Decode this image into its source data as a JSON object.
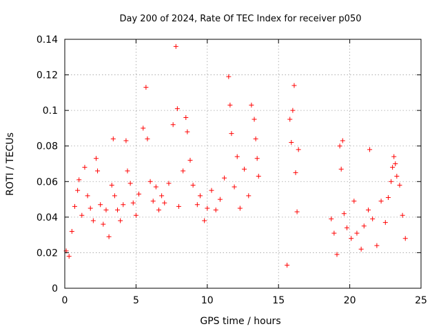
{
  "chart_data": {
    "type": "scatter",
    "title": "Day 200 of 2024, Rate Of TEC Index for receiver p050",
    "xlabel": "GPS time / hours",
    "ylabel": "ROTI / TECUs",
    "xlim": [
      0,
      25
    ],
    "ylim": [
      0,
      0.14
    ],
    "xticks": [
      "0",
      "5",
      "10",
      "15",
      "20",
      "25"
    ],
    "yticks": [
      "0",
      "0.02",
      "0.04",
      "0.06",
      "0.08",
      "0.1",
      "0.12",
      "0.14"
    ],
    "grid": true,
    "marker": "+",
    "color": "#ff0000",
    "series": [
      {
        "x": [
          0.1,
          0.3,
          0.5,
          0.7,
          0.9,
          1.0,
          1.2,
          1.4,
          1.6,
          1.8,
          2.0,
          2.2,
          2.3,
          2.5,
          2.7,
          2.9,
          3.1,
          3.3,
          3.4,
          3.5,
          3.7,
          3.9,
          4.1,
          4.3,
          4.4,
          4.6,
          4.8,
          5.0,
          5.2,
          5.5,
          5.7,
          5.8,
          6.0,
          6.2,
          6.4,
          6.6,
          6.8,
          7.0,
          7.3,
          7.6,
          7.8,
          7.9,
          8.0,
          8.3,
          8.5,
          8.6,
          8.8,
          9.0,
          9.3,
          9.5,
          9.8,
          10.0,
          10.3,
          10.6,
          10.9,
          11.2,
          11.5,
          11.6,
          11.7,
          11.9,
          12.1,
          12.3,
          12.6,
          12.9,
          13.1,
          13.3,
          13.4,
          13.5,
          13.6,
          15.6,
          15.8,
          15.9,
          16.0,
          16.1,
          16.2,
          16.3,
          16.4,
          18.7,
          18.9,
          19.1,
          19.3,
          19.4,
          19.5,
          19.6,
          19.8,
          20.1,
          20.3,
          20.5,
          20.8,
          21.0,
          21.3,
          21.4,
          21.6,
          21.9,
          22.2,
          22.5,
          22.7,
          22.9,
          23.0,
          23.1,
          23.2,
          23.3,
          23.5,
          23.7,
          23.9
        ],
        "y": [
          0.021,
          0.018,
          0.032,
          0.046,
          0.055,
          0.061,
          0.041,
          0.068,
          0.052,
          0.045,
          0.038,
          0.073,
          0.066,
          0.047,
          0.036,
          0.044,
          0.029,
          0.058,
          0.084,
          0.052,
          0.044,
          0.038,
          0.047,
          0.083,
          0.066,
          0.059,
          0.048,
          0.041,
          0.053,
          0.09,
          0.113,
          0.084,
          0.06,
          0.049,
          0.057,
          0.044,
          0.052,
          0.048,
          0.059,
          0.092,
          0.136,
          0.101,
          0.046,
          0.066,
          0.096,
          0.088,
          0.072,
          0.058,
          0.047,
          0.052,
          0.038,
          0.045,
          0.055,
          0.044,
          0.05,
          0.062,
          0.119,
          0.103,
          0.087,
          0.057,
          0.074,
          0.045,
          0.067,
          0.052,
          0.103,
          0.095,
          0.084,
          0.073,
          0.063,
          0.013,
          0.095,
          0.082,
          0.1,
          0.114,
          0.065,
          0.043,
          0.078,
          0.039,
          0.031,
          0.019,
          0.08,
          0.067,
          0.083,
          0.042,
          0.034,
          0.028,
          0.049,
          0.031,
          0.022,
          0.035,
          0.044,
          0.078,
          0.039,
          0.024,
          0.049,
          0.037,
          0.051,
          0.06,
          0.068,
          0.074,
          0.07,
          0.063,
          0.058,
          0.041,
          0.028
        ]
      }
    ]
  }
}
